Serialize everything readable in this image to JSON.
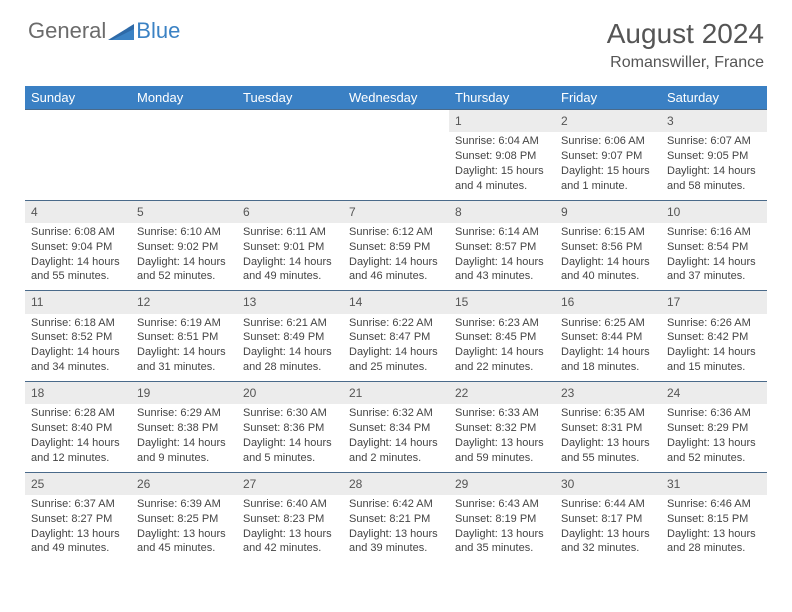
{
  "logo": {
    "general": "General",
    "blue": "Blue"
  },
  "title": {
    "month": "August 2024",
    "location": "Romanswiller, France"
  },
  "colors": {
    "header_bg": "#3a80c4",
    "header_text": "#ffffff",
    "daynum_bg": "#ececec",
    "rule": "#4a6a8a",
    "body_text": "#444444",
    "logo_gray": "#6b6b6b",
    "logo_blue": "#3b82c4"
  },
  "weekdays": [
    "Sunday",
    "Monday",
    "Tuesday",
    "Wednesday",
    "Thursday",
    "Friday",
    "Saturday"
  ],
  "weeks": [
    [
      null,
      null,
      null,
      null,
      {
        "n": "1",
        "sr": "Sunrise: 6:04 AM",
        "ss": "Sunset: 9:08 PM",
        "d1": "Daylight: 15 hours",
        "d2": "and 4 minutes."
      },
      {
        "n": "2",
        "sr": "Sunrise: 6:06 AM",
        "ss": "Sunset: 9:07 PM",
        "d1": "Daylight: 15 hours",
        "d2": "and 1 minute."
      },
      {
        "n": "3",
        "sr": "Sunrise: 6:07 AM",
        "ss": "Sunset: 9:05 PM",
        "d1": "Daylight: 14 hours",
        "d2": "and 58 minutes."
      }
    ],
    [
      {
        "n": "4",
        "sr": "Sunrise: 6:08 AM",
        "ss": "Sunset: 9:04 PM",
        "d1": "Daylight: 14 hours",
        "d2": "and 55 minutes."
      },
      {
        "n": "5",
        "sr": "Sunrise: 6:10 AM",
        "ss": "Sunset: 9:02 PM",
        "d1": "Daylight: 14 hours",
        "d2": "and 52 minutes."
      },
      {
        "n": "6",
        "sr": "Sunrise: 6:11 AM",
        "ss": "Sunset: 9:01 PM",
        "d1": "Daylight: 14 hours",
        "d2": "and 49 minutes."
      },
      {
        "n": "7",
        "sr": "Sunrise: 6:12 AM",
        "ss": "Sunset: 8:59 PM",
        "d1": "Daylight: 14 hours",
        "d2": "and 46 minutes."
      },
      {
        "n": "8",
        "sr": "Sunrise: 6:14 AM",
        "ss": "Sunset: 8:57 PM",
        "d1": "Daylight: 14 hours",
        "d2": "and 43 minutes."
      },
      {
        "n": "9",
        "sr": "Sunrise: 6:15 AM",
        "ss": "Sunset: 8:56 PM",
        "d1": "Daylight: 14 hours",
        "d2": "and 40 minutes."
      },
      {
        "n": "10",
        "sr": "Sunrise: 6:16 AM",
        "ss": "Sunset: 8:54 PM",
        "d1": "Daylight: 14 hours",
        "d2": "and 37 minutes."
      }
    ],
    [
      {
        "n": "11",
        "sr": "Sunrise: 6:18 AM",
        "ss": "Sunset: 8:52 PM",
        "d1": "Daylight: 14 hours",
        "d2": "and 34 minutes."
      },
      {
        "n": "12",
        "sr": "Sunrise: 6:19 AM",
        "ss": "Sunset: 8:51 PM",
        "d1": "Daylight: 14 hours",
        "d2": "and 31 minutes."
      },
      {
        "n": "13",
        "sr": "Sunrise: 6:21 AM",
        "ss": "Sunset: 8:49 PM",
        "d1": "Daylight: 14 hours",
        "d2": "and 28 minutes."
      },
      {
        "n": "14",
        "sr": "Sunrise: 6:22 AM",
        "ss": "Sunset: 8:47 PM",
        "d1": "Daylight: 14 hours",
        "d2": "and 25 minutes."
      },
      {
        "n": "15",
        "sr": "Sunrise: 6:23 AM",
        "ss": "Sunset: 8:45 PM",
        "d1": "Daylight: 14 hours",
        "d2": "and 22 minutes."
      },
      {
        "n": "16",
        "sr": "Sunrise: 6:25 AM",
        "ss": "Sunset: 8:44 PM",
        "d1": "Daylight: 14 hours",
        "d2": "and 18 minutes."
      },
      {
        "n": "17",
        "sr": "Sunrise: 6:26 AM",
        "ss": "Sunset: 8:42 PM",
        "d1": "Daylight: 14 hours",
        "d2": "and 15 minutes."
      }
    ],
    [
      {
        "n": "18",
        "sr": "Sunrise: 6:28 AM",
        "ss": "Sunset: 8:40 PM",
        "d1": "Daylight: 14 hours",
        "d2": "and 12 minutes."
      },
      {
        "n": "19",
        "sr": "Sunrise: 6:29 AM",
        "ss": "Sunset: 8:38 PM",
        "d1": "Daylight: 14 hours",
        "d2": "and 9 minutes."
      },
      {
        "n": "20",
        "sr": "Sunrise: 6:30 AM",
        "ss": "Sunset: 8:36 PM",
        "d1": "Daylight: 14 hours",
        "d2": "and 5 minutes."
      },
      {
        "n": "21",
        "sr": "Sunrise: 6:32 AM",
        "ss": "Sunset: 8:34 PM",
        "d1": "Daylight: 14 hours",
        "d2": "and 2 minutes."
      },
      {
        "n": "22",
        "sr": "Sunrise: 6:33 AM",
        "ss": "Sunset: 8:32 PM",
        "d1": "Daylight: 13 hours",
        "d2": "and 59 minutes."
      },
      {
        "n": "23",
        "sr": "Sunrise: 6:35 AM",
        "ss": "Sunset: 8:31 PM",
        "d1": "Daylight: 13 hours",
        "d2": "and 55 minutes."
      },
      {
        "n": "24",
        "sr": "Sunrise: 6:36 AM",
        "ss": "Sunset: 8:29 PM",
        "d1": "Daylight: 13 hours",
        "d2": "and 52 minutes."
      }
    ],
    [
      {
        "n": "25",
        "sr": "Sunrise: 6:37 AM",
        "ss": "Sunset: 8:27 PM",
        "d1": "Daylight: 13 hours",
        "d2": "and 49 minutes."
      },
      {
        "n": "26",
        "sr": "Sunrise: 6:39 AM",
        "ss": "Sunset: 8:25 PM",
        "d1": "Daylight: 13 hours",
        "d2": "and 45 minutes."
      },
      {
        "n": "27",
        "sr": "Sunrise: 6:40 AM",
        "ss": "Sunset: 8:23 PM",
        "d1": "Daylight: 13 hours",
        "d2": "and 42 minutes."
      },
      {
        "n": "28",
        "sr": "Sunrise: 6:42 AM",
        "ss": "Sunset: 8:21 PM",
        "d1": "Daylight: 13 hours",
        "d2": "and 39 minutes."
      },
      {
        "n": "29",
        "sr": "Sunrise: 6:43 AM",
        "ss": "Sunset: 8:19 PM",
        "d1": "Daylight: 13 hours",
        "d2": "and 35 minutes."
      },
      {
        "n": "30",
        "sr": "Sunrise: 6:44 AM",
        "ss": "Sunset: 8:17 PM",
        "d1": "Daylight: 13 hours",
        "d2": "and 32 minutes."
      },
      {
        "n": "31",
        "sr": "Sunrise: 6:46 AM",
        "ss": "Sunset: 8:15 PM",
        "d1": "Daylight: 13 hours",
        "d2": "and 28 minutes."
      }
    ]
  ]
}
